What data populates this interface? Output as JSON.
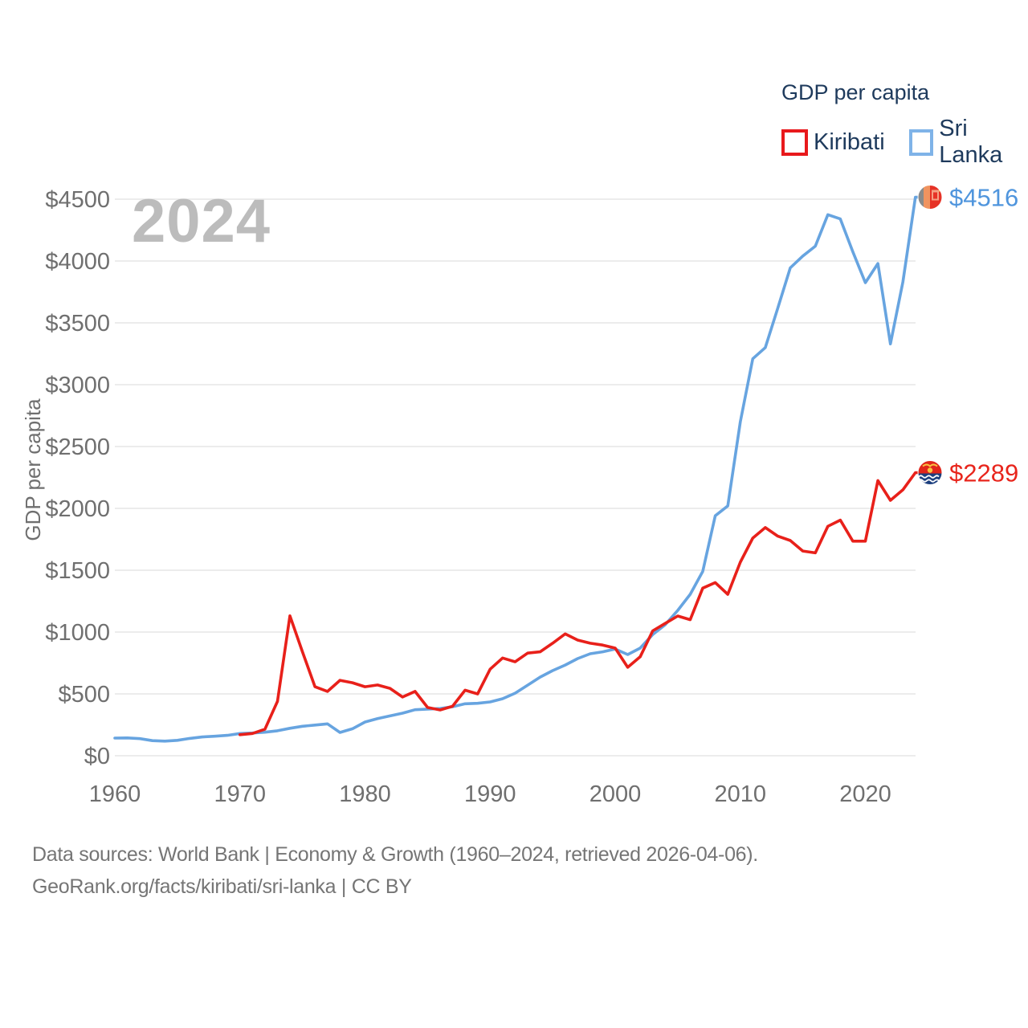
{
  "legend": {
    "title": "GDP per capita",
    "items": [
      {
        "label": "Kiribati",
        "color": "#e8191c"
      },
      {
        "label": "Sri Lanka",
        "color": "#7fb3e8"
      }
    ]
  },
  "watermark": "2024",
  "y_axis": {
    "title": "GDP per capita",
    "ticks": [
      {
        "value": 0,
        "label": "$0"
      },
      {
        "value": 500,
        "label": "$500"
      },
      {
        "value": 1000,
        "label": "$1000"
      },
      {
        "value": 1500,
        "label": "$1500"
      },
      {
        "value": 2000,
        "label": "$2000"
      },
      {
        "value": 2500,
        "label": "$2500"
      },
      {
        "value": 3000,
        "label": "$3000"
      },
      {
        "value": 3500,
        "label": "$3500"
      },
      {
        "value": 4000,
        "label": "$4000"
      },
      {
        "value": 4500,
        "label": "$4500"
      }
    ]
  },
  "x_axis": {
    "ticks": [
      {
        "value": 1960,
        "label": "1960"
      },
      {
        "value": 1970,
        "label": "1970"
      },
      {
        "value": 1980,
        "label": "1980"
      },
      {
        "value": 1990,
        "label": "1990"
      },
      {
        "value": 2000,
        "label": "2000"
      },
      {
        "value": 2010,
        "label": "2010"
      },
      {
        "value": 2020,
        "label": "2020"
      }
    ]
  },
  "end_labels": {
    "sri_lanka": {
      "text": "$4516",
      "color": "#4f95dd"
    },
    "kiribati": {
      "text": "$2289",
      "color": "#e8251c"
    }
  },
  "caption": {
    "line1": "Data sources: World Bank | Economy & Growth (1960–2024, retrieved 2026-04-06).",
    "line2": "GeoRank.org/facts/kiribati/sri-lanka | CC BY"
  },
  "colors": {
    "kiribati_line": "#e8201a",
    "sri_lanka_line": "#67a4e0",
    "gridline": "#e6e6e6",
    "axis_text": "#6f6f6f",
    "watermark": "#bcbcbc",
    "legend_text": "#1e3a5c"
  },
  "chart_data": {
    "type": "line",
    "title": "GDP per capita",
    "xlabel": "",
    "ylabel": "GDP per capita",
    "xlim": [
      1960,
      2024
    ],
    "ylim": [
      0,
      4500
    ],
    "grid": "horizontal",
    "legend_position": "top-right",
    "x": [
      1960,
      1961,
      1962,
      1963,
      1964,
      1965,
      1966,
      1967,
      1968,
      1969,
      1970,
      1971,
      1972,
      1973,
      1974,
      1975,
      1976,
      1977,
      1978,
      1979,
      1980,
      1981,
      1982,
      1983,
      1984,
      1985,
      1986,
      1987,
      1988,
      1989,
      1990,
      1991,
      1992,
      1993,
      1994,
      1995,
      1996,
      1997,
      1998,
      1999,
      2000,
      2001,
      2002,
      2003,
      2004,
      2005,
      2006,
      2007,
      2008,
      2009,
      2010,
      2011,
      2012,
      2013,
      2014,
      2015,
      2016,
      2017,
      2018,
      2019,
      2020,
      2021,
      2022,
      2023,
      2024
    ],
    "series": [
      {
        "name": "Kiribati",
        "values": [
          null,
          null,
          null,
          null,
          null,
          null,
          null,
          null,
          null,
          null,
          170,
          180,
          215,
          440,
          1131,
          840,
          558,
          520,
          610,
          590,
          558,
          572,
          545,
          475,
          520,
          390,
          370,
          400,
          530,
          500,
          700,
          790,
          760,
          830,
          840,
          910,
          985,
          935,
          910,
          895,
          870,
          715,
          800,
          1010,
          1070,
          1130,
          1100,
          1355,
          1400,
          1305,
          1565,
          1760,
          1845,
          1775,
          1740,
          1655,
          1640,
          1855,
          1905,
          1735,
          1735,
          2225,
          2065,
          2150,
          2289
        ],
        "end_value": 2289
      },
      {
        "name": "Sri Lanka",
        "values": [
          143,
          144,
          138,
          122,
          118,
          125,
          140,
          152,
          158,
          165,
          180,
          184,
          190,
          202,
          222,
          238,
          248,
          258,
          188,
          218,
          273,
          300,
          322,
          344,
          372,
          377,
          382,
          396,
          420,
          424,
          435,
          461,
          506,
          571,
          636,
          688,
          733,
          786,
          825,
          840,
          863,
          818,
          870,
          980,
          1060,
          1175,
          1305,
          1490,
          1940,
          2020,
          2700,
          3210,
          3300,
          3620,
          3945,
          4040,
          4120,
          4375,
          4340,
          4075,
          3825,
          3980,
          3330,
          3830,
          4516
        ],
        "end_value": 4516
      }
    ]
  }
}
